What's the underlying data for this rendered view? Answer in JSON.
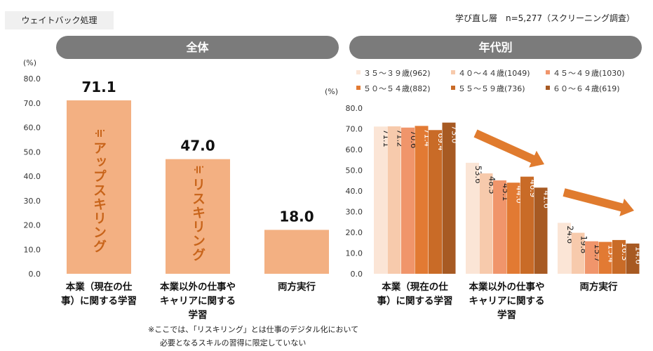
{
  "header": {
    "tag": "ウェイトバック処理",
    "sample_note": "学び直し層　n=5,277（スクリーニング調査）"
  },
  "panels": {
    "left_title": "全体",
    "right_title": "年代別"
  },
  "footnote": {
    "line1": "※ここでは、「リスキリング」とは仕事のデジタル化において",
    "line2": "必要となるスキルの習得に限定していない"
  },
  "colors": {
    "left_bar": "#f3b082",
    "vertical_text": "#c8641a",
    "arrow": "#e07b2e",
    "pill": "#7b7b7b",
    "series": [
      "#fbe5d6",
      "#f7caac",
      "#f0956b",
      "#e27a33",
      "#c96b27",
      "#a75a23"
    ]
  },
  "chart_data": [
    {
      "type": "bar",
      "title": "全体",
      "ylabel": "(%)",
      "ylim": [
        0,
        80
      ],
      "yticks": [
        "0.0",
        "10.0",
        "20.0",
        "30.0",
        "40.0",
        "50.0",
        "60.0",
        "70.0",
        "80.0"
      ],
      "categories": [
        [
          "本業（現在の仕",
          "事）に関する学習"
        ],
        [
          "本業以外の仕事や",
          "キャリアに関する",
          "学習"
        ],
        [
          "両方実行"
        ]
      ],
      "values": [
        71.1,
        47.0,
        18.0
      ],
      "value_labels": [
        "71.1",
        "47.0",
        "18.0"
      ],
      "bar_annotations": [
        "≡アップスキリング",
        "≡リスキリング",
        ""
      ],
      "annotation_text": [
        "アップスキリング",
        "リスキリング"
      ],
      "grid": false
    },
    {
      "type": "bar",
      "title": "年代別",
      "ylabel": "(%)",
      "ylim": [
        0,
        80
      ],
      "yticks": [
        "0.0",
        "10.0",
        "20.0",
        "30.0",
        "40.0",
        "50.0",
        "60.0",
        "70.0",
        "80.0"
      ],
      "categories": [
        [
          "本業（現在の仕",
          "事）に関する学習"
        ],
        [
          "本業以外の仕事や",
          "キャリアに関する",
          "学習"
        ],
        [
          "両方実行"
        ]
      ],
      "series": [
        {
          "name": "３５～３９歳(962)",
          "values": [
            71.1,
            53.6,
            24.6
          ]
        },
        {
          "name": "４０～４４歳(1049)",
          "values": [
            71.2,
            48.5,
            19.8
          ]
        },
        {
          "name": "４５～４９歳(1030)",
          "values": [
            70.6,
            45.1,
            15.7
          ]
        },
        {
          "name": "５０～５４歳(882)",
          "values": [
            71.4,
            44.0,
            15.4
          ]
        },
        {
          "name": "５５～５９歳(736)",
          "values": [
            69.4,
            46.9,
            16.3
          ]
        },
        {
          "name": "６０～６４歳(619)",
          "values": [
            73.0,
            41.6,
            14.6
          ]
        }
      ],
      "legend_position": "top",
      "annotations": [
        "downward-trend-arrow",
        "downward-trend-arrow"
      ],
      "grid": false
    }
  ]
}
